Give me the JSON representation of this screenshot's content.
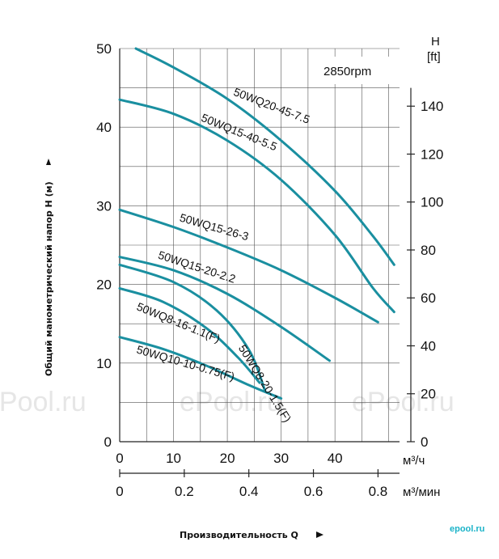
{
  "chart_data": {
    "type": "line",
    "speed_label": "2850rpm",
    "xlim": [
      0,
      52
    ],
    "ylim": [
      0,
      50
    ],
    "x_ticks_m3h": [
      "0",
      "10",
      "20",
      "30",
      "40"
    ],
    "x_unit_m3h": "м³/ч",
    "x_ticks_m3min": [
      "0",
      "0.2",
      "0.4",
      "0.6",
      "0.8"
    ],
    "x_unit_m3min": "м³/мин",
    "y_ticks_m": [
      "0",
      "10",
      "20",
      "30",
      "40",
      "50"
    ],
    "y_ticks_ft": [
      "0",
      "20",
      "40",
      "60",
      "80",
      "100",
      "120",
      "140"
    ],
    "y_right_title": "H",
    "y_right_unit": "[ft]",
    "xlabel": "Производительность Q",
    "ylabel": "Общий манометрический напор H (м)",
    "grid": true,
    "line_color": "#1a8fa0",
    "series": [
      {
        "name": "50WQ20-45-7.5",
        "points": [
          [
            3,
            50
          ],
          [
            10,
            47.6
          ],
          [
            20,
            43.6
          ],
          [
            30,
            38.3
          ],
          [
            40,
            31.9
          ],
          [
            47,
            26.2
          ],
          [
            51,
            22.5
          ]
        ]
      },
      {
        "name": "50WQ15-40-5.5",
        "points": [
          [
            0,
            43.5
          ],
          [
            10,
            41.7
          ],
          [
            20,
            38.3
          ],
          [
            30,
            33.3
          ],
          [
            40,
            26.3
          ],
          [
            47,
            19.6
          ],
          [
            51,
            16.5
          ]
        ]
      },
      {
        "name": "50WQ15-26-3",
        "points": [
          [
            0,
            29.5
          ],
          [
            10,
            27.3
          ],
          [
            20,
            24.7
          ],
          [
            30,
            21.8
          ],
          [
            40,
            18.3
          ],
          [
            48,
            15.2
          ]
        ]
      },
      {
        "name": "50WQ15-20-2.2",
        "points": [
          [
            0,
            23.5
          ],
          [
            10,
            21.8
          ],
          [
            20,
            18.8
          ],
          [
            30,
            14.6
          ],
          [
            39,
            10.3
          ]
        ]
      },
      {
        "name": "50WQ8-20-1.5(F)",
        "points": [
          [
            0,
            22.5
          ],
          [
            10,
            20.3
          ],
          [
            18,
            16.7
          ],
          [
            24,
            11.7
          ],
          [
            27,
            6.5
          ]
        ]
      },
      {
        "name": "50WQ8-16-1.1(F)",
        "points": [
          [
            0,
            19.5
          ],
          [
            8,
            17.8
          ],
          [
            16,
            14.5
          ],
          [
            22,
            10.7
          ],
          [
            26,
            7.5
          ]
        ]
      },
      {
        "name": "50WQ10-10-0.75(F)",
        "points": [
          [
            0,
            13.3
          ],
          [
            8,
            11.8
          ],
          [
            16,
            9.7
          ],
          [
            24,
            7.2
          ],
          [
            30,
            5.5
          ]
        ]
      }
    ]
  },
  "watermarks": [
    "ePool.ru",
    "ePool.ru",
    "ePool.ru"
  ],
  "logo_text": "epool.ru"
}
